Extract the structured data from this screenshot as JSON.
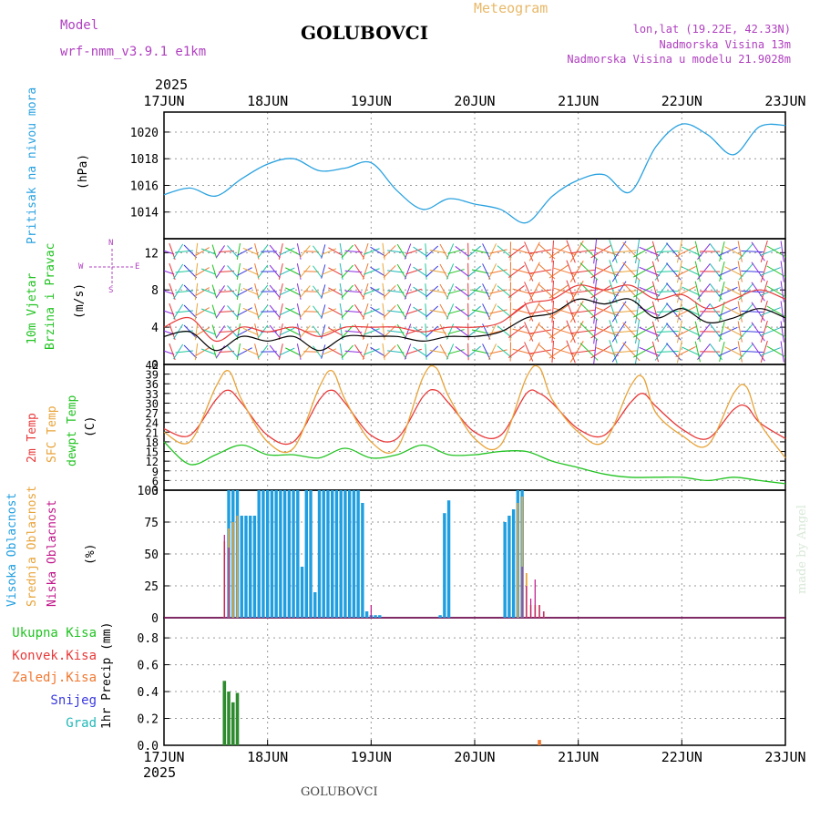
{
  "header": {
    "model_label": "Model",
    "model_name": "wrf-nmm_v3.9.1  e1km",
    "station": "GOLUBOVCI",
    "product": "Meteogram",
    "coords": "lon,lat (19.22E, 42.33N)",
    "elevation": "Nadmorska Visina 13m",
    "model_elevation": "Nadmorska Visina u modelu 21.9028m",
    "footer_station": "GOLUBOVCI",
    "credit": "made by Angel"
  },
  "time_axis": {
    "year": "2025",
    "days": [
      "17JUN",
      "18JUN",
      "19JUN",
      "20JUN",
      "21JUN",
      "22JUN",
      "23JUN"
    ]
  },
  "panel_labels": {
    "pressure": [
      "Pritisak na nivou mora",
      "(hPa)"
    ],
    "wind": [
      "10m Vjetar",
      "Brzina i Pravac",
      "(m/s)"
    ],
    "compass": [
      "N",
      "E",
      "W",
      "S"
    ],
    "temp": [
      "2m Temp",
      "SFC Temp",
      "dewpt Temp",
      "(C)"
    ],
    "cloud": [
      "Visoka Oblacnost",
      "Srednja Oblacnost",
      "Niska Oblacnost",
      "(%)"
    ],
    "precip_legend": [
      "Ukupna Kisa",
      "Konvek.Kisa",
      "Zaledj.Kisa",
      "Snijeg",
      "Grad"
    ],
    "precip_axis": "1hr Precip (mm)"
  },
  "colors": {
    "pressure": "#2aa2e0",
    "wind_speed": "#000000",
    "wind_gust": "#e83a3a",
    "t2m": "#e83a3a",
    "tsfc": "#e8a43a",
    "dewpt": "#22c322",
    "high_cloud": "#1f9ee0",
    "mid_cloud": "#e8a43a",
    "low_cloud": "#c0168a",
    "precip_total": "#2e8b2e",
    "precip_conv": "#e83a3a",
    "precip_frz": "#f07830",
    "snow": "#3a3ae0",
    "hail": "#22b8b8",
    "label_purple": "#b040c0"
  },
  "chart_data": [
    {
      "type": "line",
      "title": "Pritisak na nivou mora",
      "ylabel": "(hPa)",
      "ylim": [
        1012,
        1021.5
      ],
      "yticks": [
        1014,
        1016,
        1018,
        1020
      ],
      "x_unit": "hours since 17JUN 00",
      "grid": true,
      "series": [
        {
          "name": "Pritisak na nivou mora",
          "x": [
            0,
            6,
            12,
            18,
            24,
            30,
            36,
            42,
            48,
            54,
            60,
            66,
            72,
            78,
            84,
            90,
            96,
            102,
            108,
            114,
            120,
            126,
            132,
            138,
            144
          ],
          "values": [
            1015.3,
            1015.8,
            1015.2,
            1016.5,
            1017.6,
            1018.0,
            1017.1,
            1017.3,
            1017.7,
            1015.6,
            1014.2,
            1015.0,
            1014.6,
            1014.2,
            1013.2,
            1015.2,
            1016.4,
            1016.8,
            1015.5,
            1018.9,
            1020.6,
            1019.8,
            1018.3,
            1020.4,
            1020.5
          ]
        }
      ]
    },
    {
      "type": "line",
      "title": "10m Vjetar",
      "ylabel": "(m/s)",
      "ylim": [
        0,
        13.5
      ],
      "yticks": [
        0,
        4,
        8,
        12
      ],
      "x_unit": "hours since 17JUN 00",
      "grid": true,
      "series": [
        {
          "name": "speed",
          "x": [
            0,
            6,
            12,
            18,
            24,
            30,
            36,
            42,
            48,
            54,
            60,
            66,
            72,
            78,
            84,
            90,
            96,
            102,
            108,
            114,
            120,
            126,
            132,
            138,
            144
          ],
          "values": [
            3,
            3.5,
            1.5,
            3,
            2.5,
            3,
            1.5,
            3,
            3,
            3,
            2.5,
            3,
            3,
            3.5,
            5,
            5.5,
            7,
            6.5,
            7,
            5,
            6,
            4.5,
            5,
            6,
            5
          ]
        },
        {
          "name": "gust",
          "x": [
            0,
            6,
            12,
            18,
            24,
            30,
            36,
            42,
            48,
            54,
            60,
            66,
            72,
            78,
            84,
            90,
            96,
            102,
            108,
            114,
            120,
            126,
            132,
            138,
            144
          ],
          "values": [
            4,
            5,
            2.5,
            4,
            3.5,
            4,
            3,
            4,
            4,
            4,
            3.5,
            4,
            4,
            4.5,
            6.5,
            7,
            8.5,
            8,
            8.5,
            7,
            7.5,
            6,
            7,
            8,
            7
          ]
        }
      ]
    },
    {
      "type": "line",
      "title": "2m Temp / SFC Temp / dewpt Temp",
      "ylabel": "(C)",
      "ylim": [
        3,
        42
      ],
      "yticks": [
        3,
        6,
        9,
        12,
        15,
        18,
        21,
        24,
        27,
        30,
        33,
        36,
        39,
        42
      ],
      "x_unit": "hours since 17JUN 00",
      "grid": true,
      "series": [
        {
          "name": "2m Temp",
          "x": [
            0,
            6,
            12,
            15,
            18,
            24,
            30,
            36,
            39,
            42,
            48,
            54,
            60,
            63,
            66,
            72,
            78,
            84,
            87,
            90,
            96,
            102,
            108,
            111,
            114,
            120,
            126,
            132,
            135,
            138,
            144
          ],
          "values": [
            22,
            20,
            31,
            34,
            30,
            20,
            18,
            31,
            34,
            30,
            20,
            19,
            32,
            34,
            30,
            21,
            20,
            33,
            33,
            30,
            22,
            20,
            30,
            33,
            29,
            22,
            19,
            28,
            29,
            24,
            19
          ]
        },
        {
          "name": "SFC Temp",
          "x": [
            0,
            6,
            12,
            15,
            18,
            24,
            30,
            36,
            39,
            42,
            48,
            54,
            60,
            63,
            66,
            72,
            78,
            84,
            87,
            90,
            96,
            102,
            108,
            111,
            114,
            120,
            126,
            132,
            135,
            138,
            144
          ],
          "values": [
            21,
            18,
            35,
            40,
            31,
            18,
            16,
            35,
            40,
            31,
            18,
            16,
            38,
            41,
            32,
            19,
            17,
            38,
            41,
            31,
            21,
            18,
            35,
            38,
            27,
            20,
            17,
            33,
            35,
            24,
            13
          ]
        },
        {
          "name": "dewpt Temp",
          "x": [
            0,
            6,
            12,
            18,
            24,
            30,
            36,
            42,
            48,
            54,
            60,
            66,
            72,
            78,
            84,
            90,
            96,
            102,
            108,
            114,
            120,
            126,
            132,
            138,
            144
          ],
          "values": [
            18,
            11,
            14,
            17,
            14,
            14,
            13,
            16,
            13,
            14,
            17,
            14,
            14,
            15,
            15,
            12,
            10,
            8,
            7,
            7,
            7,
            6,
            7,
            6,
            5
          ]
        }
      ]
    },
    {
      "type": "bar",
      "title": "Oblacnost",
      "ylabel": "(%)",
      "ylim": [
        0,
        100
      ],
      "yticks": [
        0,
        25,
        50,
        75,
        100
      ],
      "x_unit": "hours since 17JUN 00",
      "series": [
        {
          "name": "Visoka Oblacnost",
          "x": [
            15,
            16,
            17,
            18,
            19,
            20,
            21,
            22,
            23,
            24,
            25,
            26,
            27,
            28,
            29,
            30,
            31,
            32,
            33,
            34,
            35,
            36,
            37,
            38,
            39,
            40,
            41,
            42,
            43,
            44,
            45,
            46,
            47,
            48,
            49,
            50,
            64,
            65,
            66,
            79,
            80,
            81,
            82,
            83
          ],
          "values": [
            100,
            100,
            100,
            80,
            80,
            80,
            80,
            100,
            100,
            100,
            100,
            100,
            100,
            100,
            100,
            100,
            100,
            40,
            100,
            100,
            20,
            100,
            100,
            100,
            100,
            100,
            100,
            100,
            100,
            100,
            100,
            90,
            5,
            2,
            2,
            2,
            2,
            82,
            92,
            75,
            80,
            85,
            100,
            100
          ]
        },
        {
          "name": "Srednja Oblacnost",
          "x": [
            14,
            15,
            16,
            17,
            82,
            83,
            84,
            85,
            86,
            87,
            88
          ],
          "values": [
            60,
            70,
            75,
            80,
            90,
            95,
            35,
            10,
            10,
            10,
            5
          ]
        },
        {
          "name": "Niska Oblacnost",
          "x": [
            14,
            15,
            48,
            83,
            84,
            85,
            86,
            87,
            88
          ],
          "values": [
            65,
            55,
            10,
            40,
            25,
            15,
            30,
            10,
            5
          ]
        }
      ]
    },
    {
      "type": "bar",
      "title": "1hr Precip",
      "ylabel": "1hr Precip (mm)",
      "ylim": [
        0,
        0.95
      ],
      "yticks": [
        0.0,
        0.2,
        0.4,
        0.6,
        0.8
      ],
      "x_unit": "hours since 17JUN 00",
      "series": [
        {
          "name": "Ukupna Kisa",
          "x": [
            14,
            15,
            16,
            17
          ],
          "values": [
            0.48,
            0.4,
            0.32,
            0.39
          ]
        },
        {
          "name": "Zaledj.Kisa",
          "x": [
            87
          ],
          "values": [
            0.04
          ]
        }
      ]
    }
  ]
}
